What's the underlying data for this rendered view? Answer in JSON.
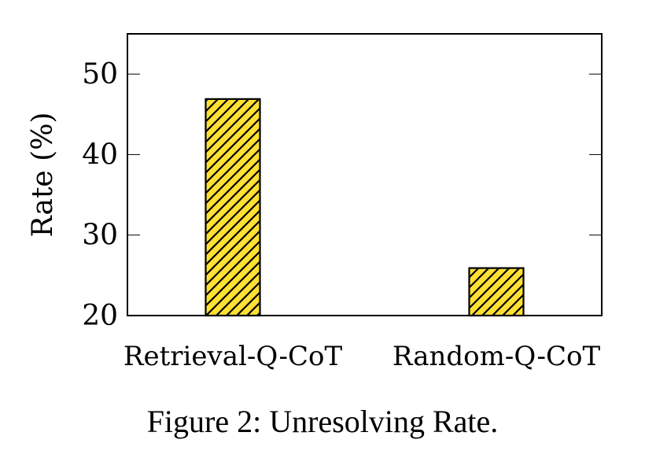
{
  "chart_data": {
    "type": "bar",
    "categories": [
      "Retrieval-Q-CoT",
      "Random-Q-CoT"
    ],
    "values": [
      46.9,
      25.9
    ],
    "title": "",
    "xlabel": "",
    "ylabel": "Rate (%)",
    "ylim": [
      20,
      55
    ],
    "yticks": [
      20,
      30,
      40,
      50
    ],
    "grid": false,
    "bar_color": "#FFE033",
    "hatch": "north-east lines"
  },
  "caption": "Figure 2: Unresolving Rate."
}
